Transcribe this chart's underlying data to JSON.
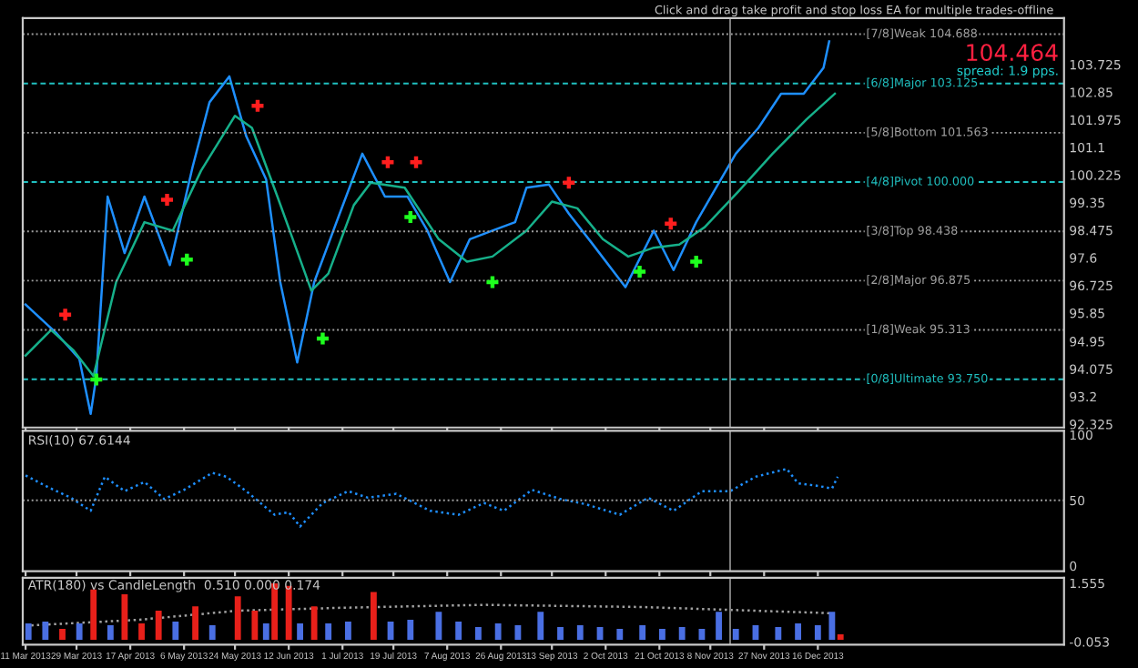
{
  "chart_data": [
    {
      "type": "line",
      "xlim": [
        "2013-03-10",
        "2014-03-13"
      ],
      "ylim": [
        92.22,
        105.2
      ],
      "yticks": [
        92.325,
        93.2,
        94.075,
        94.95,
        95.85,
        96.725,
        97.6,
        98.475,
        99.35,
        100.225,
        101.1,
        101.975,
        102.85,
        103.725
      ],
      "tick_labels": "y",
      "grid": false,
      "xticks": [
        {
          "value": "2013-03-11",
          "label": null
        },
        {
          "value": "2013-03-29",
          "label": null
        },
        {
          "value": "2013-04-17",
          "label": null
        },
        {
          "value": "2013-05-06",
          "label": null
        },
        {
          "value": "2013-05-24",
          "label": null
        },
        {
          "value": "2013-06-12",
          "label": null
        },
        {
          "value": "2013-07-01",
          "label": null
        },
        {
          "value": "2013-07-19",
          "label": null
        },
        {
          "value": "2013-08-07",
          "label": null
        },
        {
          "value": "2013-08-26",
          "label": null
        },
        {
          "value": "2013-09-13",
          "label": null
        },
        {
          "value": "2013-10-02",
          "label": null
        },
        {
          "value": "2013-10-21",
          "label": null
        },
        {
          "value": "2013-11-08",
          "label": null
        },
        {
          "value": "2013-11-27",
          "label": null
        },
        {
          "value": "2013-12-16",
          "label": null
        }
      ],
      "series": [
        {
          "color": "#1e8fff",
          "x": [
            "2013-03-11",
            "2013-03-22",
            "2013-03-30",
            "2013-04-03",
            "2013-04-05",
            "2013-04-09",
            "2013-04-15",
            "2013-04-22",
            "2013-05-01",
            "2013-05-09",
            "2013-05-15",
            "2013-05-22",
            "2013-05-28",
            "2013-06-04",
            "2013-06-09",
            "2013-06-15",
            "2013-06-21",
            "2013-06-30",
            "2013-07-08",
            "2013-07-16",
            "2013-07-24",
            "2013-07-31",
            "2013-08-08",
            "2013-08-15",
            "2013-08-23",
            "2013-08-31",
            "2013-09-04",
            "2013-09-12",
            "2013-09-19",
            "2013-09-27",
            "2013-10-09",
            "2013-10-19",
            "2013-10-26",
            "2013-11-03",
            "2013-11-10",
            "2013-11-17",
            "2013-11-25",
            "2013-12-03",
            "2013-12-11",
            "2013-12-18",
            "2013-12-20"
          ],
          "values": [
            96.12,
            95.2,
            94.39,
            92.65,
            93.84,
            99.54,
            97.75,
            99.54,
            97.37,
            100.47,
            102.53,
            103.35,
            101.45,
            100.09,
            96.83,
            94.28,
            96.83,
            99.0,
            100.9,
            99.54,
            99.54,
            98.46,
            96.83,
            98.19,
            98.46,
            98.73,
            99.82,
            99.92,
            99.0,
            98.08,
            96.67,
            98.46,
            97.21,
            98.73,
            99.82,
            100.9,
            101.72,
            102.8,
            102.8,
            103.62,
            104.46
          ]
        },
        {
          "type": "line",
          "color": "#16b08a",
          "x": [
            "2013-03-11",
            "2013-03-20",
            "2013-03-28",
            "2013-04-04",
            "2013-04-12",
            "2013-04-22",
            "2013-05-02",
            "2013-05-12",
            "2013-05-24",
            "2013-05-30",
            "2013-06-08",
            "2013-06-20",
            "2013-06-26",
            "2013-07-05",
            "2013-07-11",
            "2013-07-23",
            "2013-08-04",
            "2013-08-14",
            "2013-08-23",
            "2013-09-04",
            "2013-09-13",
            "2013-09-22",
            "2013-10-01",
            "2013-10-10",
            "2013-10-19",
            "2013-10-28",
            "2013-11-06",
            "2013-11-18",
            "2013-11-30",
            "2013-12-12",
            "2013-12-22"
          ],
          "values": [
            94.5,
            95.31,
            94.66,
            93.85,
            96.83,
            98.73,
            98.46,
            100.36,
            102.1,
            101.72,
            99.54,
            96.56,
            97.1,
            99.27,
            99.98,
            99.82,
            98.19,
            97.48,
            97.64,
            98.46,
            99.38,
            99.17,
            98.19,
            97.64,
            97.92,
            98.02,
            98.57,
            99.71,
            100.9,
            101.99,
            102.8
          ]
        },
        {
          "type": "scatter",
          "color": "#ff1e1e",
          "marker": "cross",
          "x": [
            "2013-03-25",
            "2013-04-30",
            "2013-06-01",
            "2013-07-17",
            "2013-07-27",
            "2013-09-19",
            "2013-10-25"
          ],
          "values": [
            95.8,
            99.44,
            102.42,
            100.63,
            100.63,
            99.98,
            98.68
          ]
        },
        {
          "type": "scatter",
          "color": "#1eff1e",
          "marker": "cross",
          "x": [
            "2013-04-05",
            "2013-05-07",
            "2013-06-24",
            "2013-07-25",
            "2013-08-23",
            "2013-10-14",
            "2013-11-03"
          ],
          "values": [
            93.74,
            97.54,
            95.04,
            98.89,
            96.83,
            97.16,
            97.48
          ]
        }
      ],
      "ref_lines": [
        {
          "axis": "y",
          "value": 104.688,
          "label": "[7/8]Weak 104.688",
          "color": "#a0a0a0",
          "line_style": "dotted"
        },
        {
          "axis": "y",
          "value": 103.125,
          "label": "[6/8]Major 103.125",
          "color": "#20c0c0",
          "line_style": "dashed"
        },
        {
          "axis": "y",
          "value": 101.563,
          "label": "[5/8]Bottom 101.563",
          "color": "#a0a0a0",
          "line_style": "dotted"
        },
        {
          "axis": "y",
          "value": 100.0,
          "label": "[4/8]Pivot 100.000",
          "color": "#20c0c0",
          "line_style": "dashed"
        },
        {
          "axis": "y",
          "value": 98.438,
          "label": "[3/8]Top 98.438",
          "color": "#a0a0a0",
          "line_style": "dotted"
        },
        {
          "axis": "y",
          "value": 96.875,
          "label": "[2/8]Major 96.875",
          "color": "#a0a0a0",
          "line_style": "dotted"
        },
        {
          "axis": "y",
          "value": 95.313,
          "label": "[1/8]Weak 95.313",
          "color": "#a0a0a0",
          "line_style": "dotted"
        },
        {
          "axis": "y",
          "value": 93.75,
          "label": "[0/8]Ultimate 93.750",
          "color": "#20c0c0",
          "line_style": "dashed"
        },
        {
          "axis": "x",
          "value": "2013-11-15",
          "color": "#808080",
          "line_style": "solid"
        }
      ],
      "annotations": [
        "Click and drag take profit and stop loss EA for multiple trades-offline",
        "104.464",
        "spread: 1.9 pps."
      ]
    },
    {
      "type": "line",
      "title": "RSI(10) 67.6144",
      "xlim": [
        "2013-03-10",
        "2014-03-13"
      ],
      "ylim": [
        -4,
        103
      ],
      "yticks": [
        0,
        50,
        100
      ],
      "tick_labels": "y",
      "grid": false,
      "xticks": [
        {
          "value": "2013-03-11",
          "label": null
        },
        {
          "value": "2013-03-29",
          "label": null
        },
        {
          "value": "2013-04-17",
          "label": null
        },
        {
          "value": "2013-05-06",
          "label": null
        },
        {
          "value": "2013-05-24",
          "label": null
        },
        {
          "value": "2013-06-12",
          "label": null
        },
        {
          "value": "2013-07-01",
          "label": null
        },
        {
          "value": "2013-07-19",
          "label": null
        },
        {
          "value": "2013-08-07",
          "label": null
        },
        {
          "value": "2013-08-26",
          "label": null
        },
        {
          "value": "2013-09-13",
          "label": null
        },
        {
          "value": "2013-10-02",
          "label": null
        },
        {
          "value": "2013-10-21",
          "label": null
        },
        {
          "value": "2013-11-08",
          "label": null
        },
        {
          "value": "2013-11-27",
          "label": null
        },
        {
          "value": "2013-12-16",
          "label": null
        }
      ],
      "series": [
        {
          "color": "#1e8fff",
          "line_style": "dotted",
          "x": [
            "2013-03-11",
            "2013-03-19",
            "2013-03-27",
            "2013-04-03",
            "2013-04-08",
            "2013-04-15",
            "2013-04-22",
            "2013-04-29",
            "2013-05-06",
            "2013-05-16",
            "2013-05-21",
            "2013-05-28",
            "2013-06-07",
            "2013-06-12",
            "2013-06-16",
            "2013-06-24",
            "2013-07-03",
            "2013-07-10",
            "2013-07-20",
            "2013-08-01",
            "2013-08-11",
            "2013-08-20",
            "2013-08-27",
            "2013-09-06",
            "2013-09-16",
            "2013-09-25",
            "2013-10-07",
            "2013-10-17",
            "2013-10-26",
            "2013-11-05",
            "2013-11-15",
            "2013-11-24",
            "2013-12-05",
            "2013-12-09",
            "2013-12-16",
            "2013-12-21",
            "2013-12-23"
          ],
          "values": [
            69,
            60,
            52,
            42,
            68,
            57,
            64,
            51,
            58,
            71,
            68,
            57,
            39,
            41,
            30,
            48,
            57,
            52,
            55,
            42,
            39,
            48,
            42,
            58,
            51,
            47,
            39,
            52,
            42,
            57,
            57,
            68,
            74,
            63,
            61,
            59,
            68
          ]
        }
      ],
      "ref_lines": [
        {
          "axis": "y",
          "value": 50,
          "color": "#a0a0a0",
          "line_style": "dotted"
        },
        {
          "axis": "x",
          "value": "2013-11-15",
          "color": "#808080",
          "line_style": "solid"
        }
      ]
    },
    {
      "type": "bar",
      "title": "ATR(180) vs CandleLength  0.510 0.000 0.174",
      "xlim": [
        "2013-03-10",
        "2014-03-13"
      ],
      "ylim": [
        -0.13,
        1.7
      ],
      "yticks": [
        -0.053,
        1.555
      ],
      "grid": false,
      "xticks": [
        {
          "value": "2013-03-11",
          "label": "11 Mar 2013"
        },
        {
          "value": "2013-03-29",
          "label": "29 Mar 2013"
        },
        {
          "value": "2013-04-17",
          "label": "17 Apr 2013"
        },
        {
          "value": "2013-05-06",
          "label": "6 May 2013"
        },
        {
          "value": "2013-05-24",
          "label": "24 May 2013"
        },
        {
          "value": "2013-06-12",
          "label": "12 Jun 2013"
        },
        {
          "value": "2013-07-01",
          "label": "1 Jul 2013"
        },
        {
          "value": "2013-07-19",
          "label": "19 Jul 2013"
        },
        {
          "value": "2013-08-07",
          "label": "7 Aug 2013"
        },
        {
          "value": "2013-08-26",
          "label": "26 Aug 2013"
        },
        {
          "value": "2013-09-13",
          "label": "13 Sep 2013"
        },
        {
          "value": "2013-10-02",
          "label": "2 Oct 2013"
        },
        {
          "value": "2013-10-21",
          "label": "21 Oct 2013"
        },
        {
          "value": "2013-11-08",
          "label": "8 Nov 2013"
        },
        {
          "value": "2013-11-27",
          "label": "27 Nov 2013"
        },
        {
          "value": "2013-12-16",
          "label": "16 Dec 2013"
        }
      ],
      "series": [
        {
          "x": [
            "2013-03-12",
            "2013-03-18",
            "2013-03-24",
            "2013-03-30",
            "2013-04-04",
            "2013-04-10",
            "2013-04-15",
            "2013-04-21",
            "2013-04-27",
            "2013-05-03",
            "2013-05-10",
            "2013-05-16",
            "2013-05-25",
            "2013-05-31",
            "2013-06-04",
            "2013-06-07",
            "2013-06-12",
            "2013-06-16",
            "2013-06-21",
            "2013-06-26",
            "2013-07-03",
            "2013-07-12",
            "2013-07-18",
            "2013-07-25",
            "2013-08-04",
            "2013-08-11",
            "2013-08-18",
            "2013-08-25",
            "2013-09-01",
            "2013-09-09",
            "2013-09-16",
            "2013-09-23",
            "2013-09-30",
            "2013-10-07",
            "2013-10-15",
            "2013-10-22",
            "2013-10-29",
            "2013-11-05",
            "2013-11-11",
            "2013-11-17",
            "2013-11-24",
            "2013-12-02",
            "2013-12-09",
            "2013-12-16",
            "2013-12-21",
            "2013-12-24"
          ],
          "values": [
            0.45,
            0.5,
            0.3,
            0.45,
            1.38,
            0.4,
            1.25,
            0.45,
            0.8,
            0.5,
            0.92,
            0.4,
            1.19,
            0.8,
            0.45,
            1.55,
            1.48,
            0.45,
            0.92,
            0.45,
            0.5,
            1.31,
            0.5,
            0.55,
            0.77,
            0.5,
            0.35,
            0.45,
            0.4,
            0.77,
            0.35,
            0.4,
            0.35,
            0.3,
            0.4,
            0.3,
            0.35,
            0.3,
            0.77,
            0.3,
            0.4,
            0.35,
            0.45,
            0.4,
            0.77,
            0.15
          ],
          "colors": [
            "#4a6fe3",
            "#4a6fe3",
            "#e8201a",
            "#4a6fe3",
            "#e8201a",
            "#4a6fe3",
            "#e8201a",
            "#e8201a",
            "#e8201a",
            "#4a6fe3",
            "#e8201a",
            "#4a6fe3",
            "#e8201a",
            "#e8201a",
            "#4a6fe3",
            "#e8201a",
            "#e8201a",
            "#4a6fe3",
            "#e8201a",
            "#4a6fe3",
            "#4a6fe3",
            "#e8201a",
            "#4a6fe3",
            "#4a6fe3",
            "#4a6fe3",
            "#4a6fe3",
            "#4a6fe3",
            "#4a6fe3",
            "#4a6fe3",
            "#4a6fe3",
            "#4a6fe3",
            "#4a6fe3",
            "#4a6fe3",
            "#4a6fe3",
            "#4a6fe3",
            "#4a6fe3",
            "#4a6fe3",
            "#4a6fe3",
            "#4a6fe3",
            "#4a6fe3",
            "#4a6fe3",
            "#4a6fe3",
            "#4a6fe3",
            "#4a6fe3",
            "#4a6fe3",
            "#e8201a"
          ]
        },
        {
          "type": "line",
          "color": "#a0a0a0",
          "line_style": "dotted",
          "x": [
            "2013-03-11",
            "2013-04-20",
            "2013-05-25",
            "2013-07-01",
            "2013-08-20",
            "2013-10-15",
            "2013-12-21"
          ],
          "values": [
            0.39,
            0.55,
            0.8,
            0.88,
            0.96,
            0.9,
            0.73
          ]
        }
      ],
      "ref_lines": [
        {
          "axis": "x",
          "value": "2013-11-15",
          "color": "#808080",
          "line_style": "solid"
        }
      ]
    }
  ]
}
